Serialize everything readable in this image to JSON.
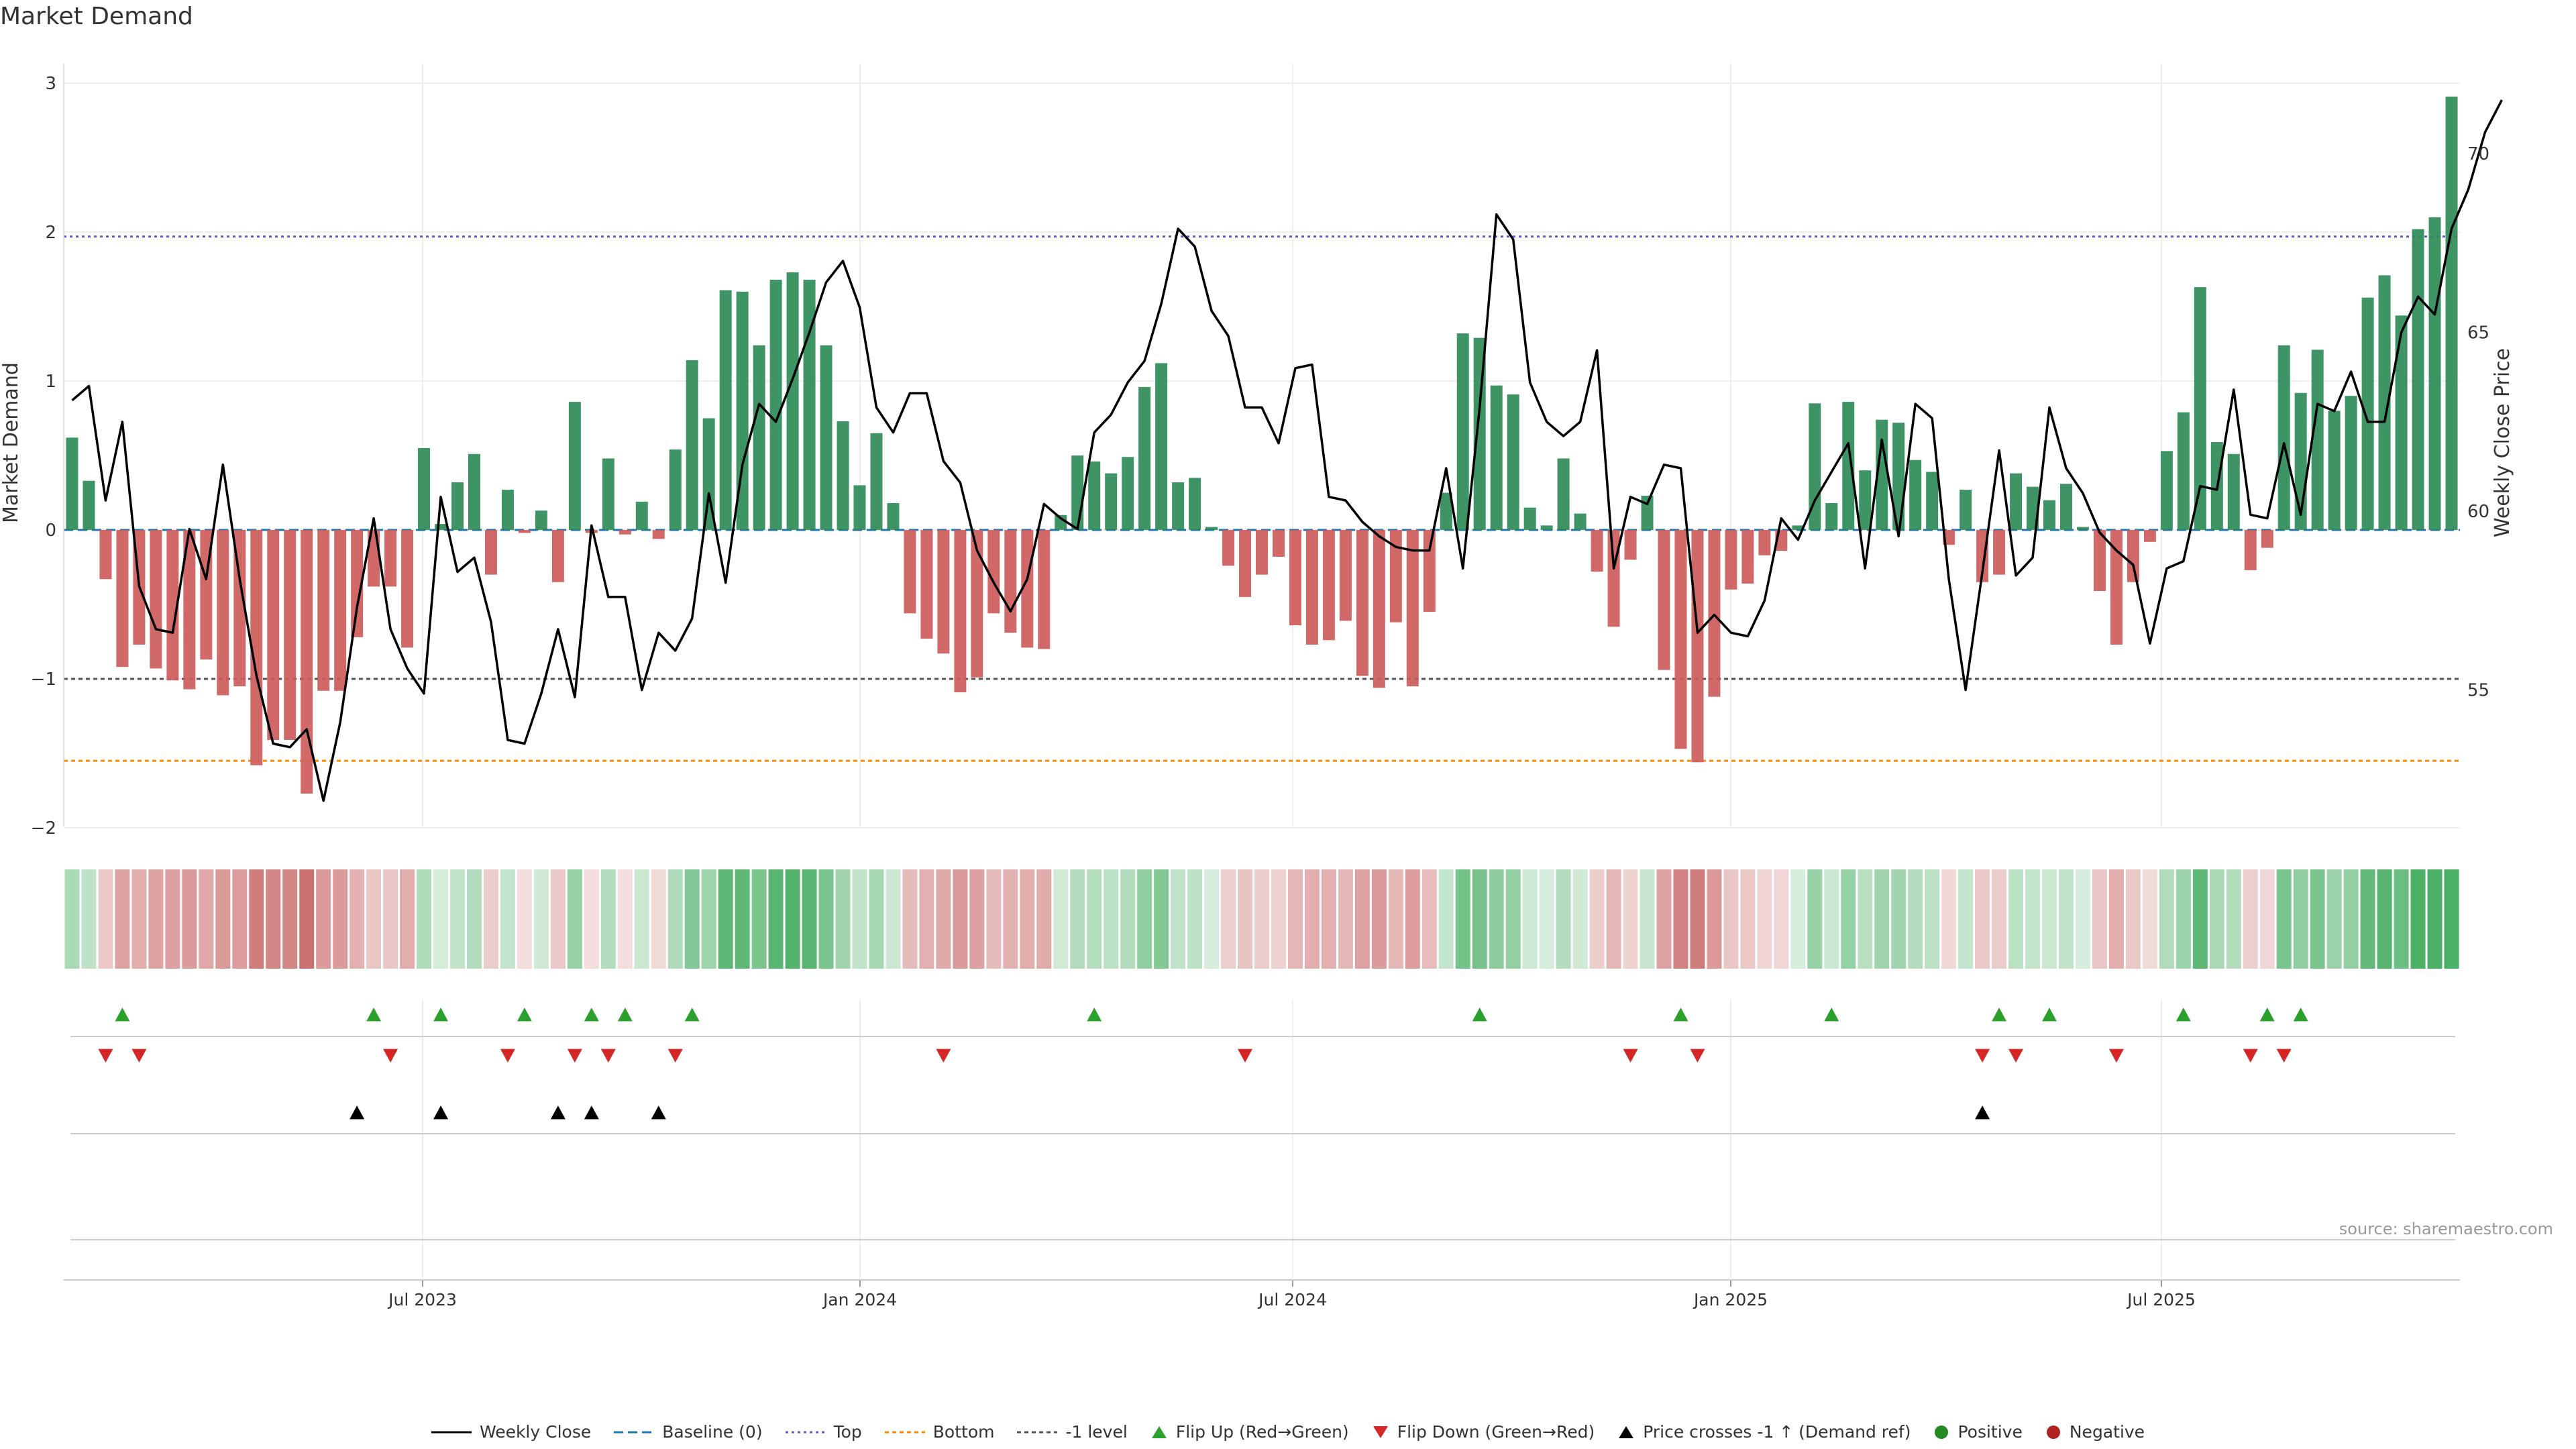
{
  "title": "Market Demand",
  "source": "source: sharemaestro.com",
  "chart_data": {
    "type": "bar",
    "x_ticks": [
      "Jul 2023",
      "Jan 2024",
      "Jul 2024",
      "Jan 2025",
      "Jul 2025"
    ],
    "left_axis": {
      "label": "Market Demand",
      "ticks": [
        "−2",
        "−1",
        "0",
        "1",
        "2",
        "3"
      ],
      "ylim": [
        -2,
        3
      ]
    },
    "right_axis": {
      "label": "Weekly Close Price",
      "ticks": [
        "55",
        "60",
        "65",
        "70"
      ]
    },
    "reference_lines": {
      "baseline": 0,
      "top": 1.97,
      "bottom": -1.55,
      "minus_one": -1
    },
    "demand": [
      0.62,
      0.33,
      -0.33,
      -0.92,
      -0.77,
      -0.93,
      -1.01,
      -1.07,
      -0.87,
      -1.11,
      -1.05,
      -1.58,
      -1.41,
      -1.41,
      -1.77,
      -1.08,
      -1.08,
      -0.72,
      -0.38,
      -0.38,
      -0.79,
      0.55,
      0.04,
      0.32,
      0.51,
      -0.3,
      0.27,
      -0.02,
      0.13,
      -0.35,
      0.86,
      -0.02,
      0.48,
      -0.03,
      0.19,
      -0.06,
      0.54,
      1.14,
      0.75,
      1.61,
      1.6,
      1.24,
      1.68,
      1.73,
      1.68,
      1.24,
      0.73,
      0.3,
      0.65,
      0.18,
      -0.56,
      -0.73,
      -0.83,
      -1.09,
      -0.99,
      -0.56,
      -0.69,
      -0.79,
      -0.8,
      0.1,
      0.5,
      0.46,
      0.38,
      0.49,
      0.96,
      1.12,
      0.32,
      0.35,
      0.02,
      -0.24,
      -0.45,
      -0.3,
      -0.18,
      -0.64,
      -0.77,
      -0.74,
      -0.61,
      -0.98,
      -1.06,
      -0.62,
      -1.05,
      -0.55,
      0.25,
      1.32,
      1.29,
      0.97,
      0.91,
      0.15,
      0.03,
      0.48,
      0.11,
      -0.28,
      -0.65,
      -0.2,
      0.23,
      -0.94,
      -1.47,
      -1.56,
      -1.12,
      -0.4,
      -0.36,
      -0.17,
      -0.14,
      0.03,
      0.85,
      0.18,
      0.86,
      0.4,
      0.74,
      0.72,
      0.47,
      0.39,
      -0.1,
      0.27,
      -0.35,
      -0.3,
      0.38,
      0.29,
      0.2,
      0.31,
      0.02,
      -0.41,
      -0.77,
      -0.35,
      -0.08,
      0.53,
      0.79,
      1.63,
      0.59,
      0.51,
      -0.27,
      -0.12,
      1.24,
      0.92,
      1.21,
      0.8,
      0.9,
      1.56,
      1.71,
      1.44,
      2.02,
      2.1,
      2.91
    ],
    "close": [
      63.1,
      63.5,
      60.3,
      62.5,
      57.9,
      56.7,
      56.6,
      59.5,
      58.1,
      61.3,
      58.1,
      55.4,
      53.5,
      53.4,
      53.9,
      51.9,
      54.1,
      57.3,
      59.8,
      56.7,
      55.6,
      54.9,
      60.4,
      58.3,
      58.7,
      56.9,
      53.6,
      53.5,
      54.9,
      56.7,
      54.8,
      59.6,
      57.6,
      57.6,
      55.0,
      56.6,
      56.1,
      57.0,
      60.5,
      58.0,
      61.3,
      63.0,
      62.5,
      63.7,
      65.0,
      66.4,
      67.0,
      65.7,
      62.9,
      62.2,
      63.3,
      63.3,
      61.4,
      60.8,
      58.9,
      58.0,
      57.2,
      58.1,
      60.2,
      59.8,
      59.5,
      62.2,
      62.7,
      63.6,
      64.2,
      65.8,
      67.9,
      67.4,
      65.6,
      64.9,
      62.9,
      62.9,
      61.9,
      64.0,
      64.1,
      60.4,
      60.3,
      59.7,
      59.3,
      59.0,
      58.9,
      58.9,
      61.2,
      58.4,
      62.9,
      68.3,
      67.6,
      63.6,
      62.5,
      62.1,
      62.5,
      64.5,
      58.4,
      60.4,
      60.2,
      61.3,
      61.2,
      56.6,
      57.1,
      56.6,
      56.5,
      57.5,
      59.8,
      59.2,
      60.3,
      61.1,
      61.9,
      58.4,
      62.0,
      59.3,
      63.0,
      62.6,
      58.1,
      55.0,
      58.3,
      61.7,
      58.2,
      58.7,
      62.9,
      61.2,
      60.5,
      59.4,
      58.9,
      58.5,
      56.3,
      58.4,
      58.6,
      60.7,
      60.6,
      63.4,
      59.9,
      59.8,
      61.9,
      59.9,
      63.0,
      62.8,
      63.9,
      62.5,
      62.5,
      65.0,
      66.0,
      65.5,
      67.9,
      69.0,
      70.6,
      71.5
    ],
    "flip_up_weeks": [
      3,
      18,
      22,
      27,
      31,
      33,
      37,
      61,
      84,
      96,
      105,
      115,
      118,
      126,
      131,
      133
    ],
    "flip_down_weeks": [
      2,
      4,
      19,
      26,
      30,
      32,
      36,
      52,
      70,
      93,
      97,
      114,
      116,
      122,
      130,
      132
    ],
    "price_cross_weeks": [
      17,
      22,
      29,
      31,
      35,
      114
    ],
    "legend": [
      "Weekly Close",
      "Baseline (0)",
      "Top",
      "Bottom",
      "-1 level",
      "Flip Up (Red→Green)",
      "Flip Down (Green→Red)",
      "Price crosses -1 ↑ (Demand ref)",
      "Positive",
      "Negative"
    ],
    "colors": {
      "positive": "#2e8b57",
      "negative": "#cd5c5c",
      "close": "#000000",
      "baseline": "#1f77b4",
      "top": "#6a5acd",
      "bottom": "#ff8c00",
      "minus_one": "#555555",
      "flip_up": "#2ca02c",
      "flip_down": "#d62728",
      "legend_positive": "#228b22",
      "legend_negative": "#b22222"
    }
  }
}
